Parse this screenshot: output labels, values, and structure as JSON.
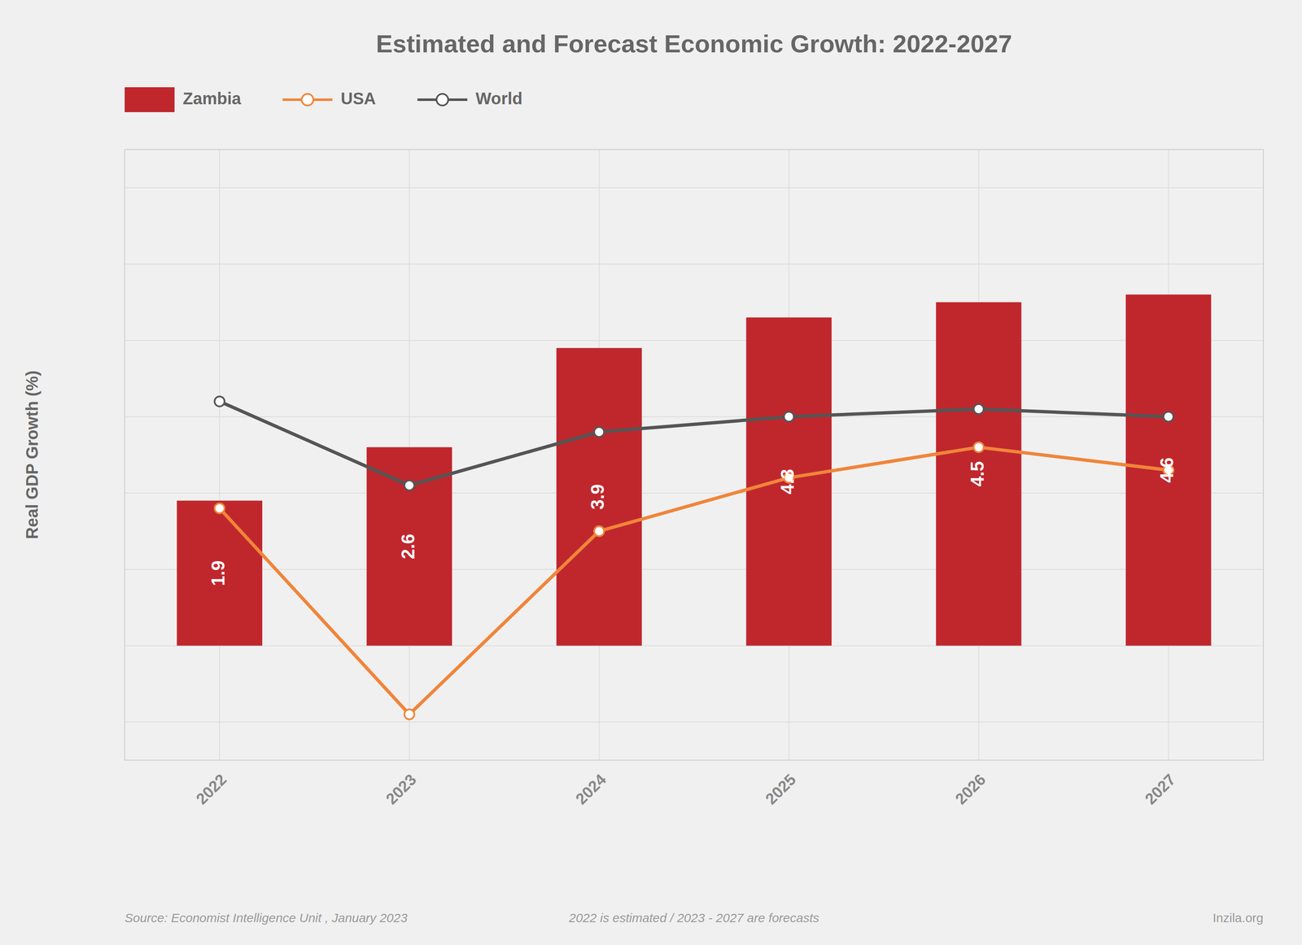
{
  "chart_data": {
    "type": "bar",
    "title": "Estimated and Forecast Economic Growth: 2022-2027",
    "ylabel": "Real GDP Growth (%)",
    "annotations": [
      "Source: Economist Intelligence Unit , January 2023",
      "2022 is estimated / 2023 - 2027 are forecasts",
      "Inzila.org"
    ],
    "categories": [
      "2022",
      "2023",
      "2024",
      "2025",
      "2026",
      "2027"
    ],
    "series": [
      {
        "name": "Zambia",
        "type": "bar",
        "color": "#C0272D",
        "data_labels": true,
        "values": [
          1.9,
          2.6,
          3.9,
          4.3,
          4.5,
          4.6
        ]
      },
      {
        "name": "USA",
        "type": "line",
        "color": "#F0853A",
        "marker": "circle",
        "values": [
          1.8,
          -0.9,
          1.5,
          2.2,
          2.6,
          2.3
        ]
      },
      {
        "name": "World",
        "type": "line",
        "color": "#555555",
        "marker": "circle",
        "values": [
          3.2,
          2.1,
          2.8,
          3.0,
          3.1,
          3.0
        ]
      }
    ],
    "ylim": [
      -1.5,
      6.5
    ],
    "yticks": [
      -1,
      0,
      1,
      2,
      3,
      4,
      5,
      6
    ],
    "grid": true,
    "legend": "top",
    "tick_labels": "x"
  }
}
